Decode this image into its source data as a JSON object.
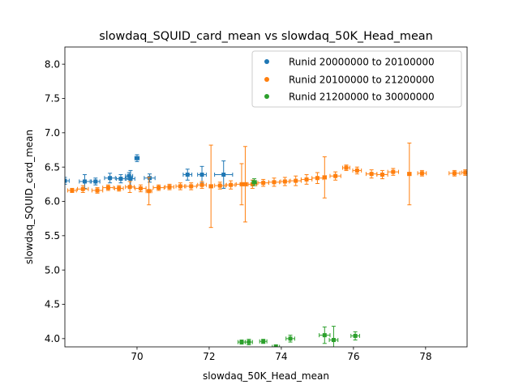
{
  "chart_data": {
    "type": "scatter",
    "title": "slowdaq_SQUID_card_mean vs slowdaq_50K_Head_mean",
    "xlabel": "slowdaq_50K_Head_mean",
    "ylabel": "slowdaq_SQUID_card_mean",
    "xlim": [
      68.0,
      79.15
    ],
    "ylim": [
      3.88,
      8.25
    ],
    "x_ticks": [
      70,
      72,
      74,
      76,
      78
    ],
    "y_ticks": [
      4.0,
      4.5,
      5.0,
      5.5,
      6.0,
      6.5,
      7.0,
      7.5,
      8.0
    ],
    "x_tick_labels": [
      "70",
      "72",
      "74",
      "76",
      "78"
    ],
    "y_tick_labels": [
      "4.0",
      "4.5",
      "5.0",
      "5.5",
      "6.0",
      "6.5",
      "7.0",
      "7.5",
      "8.0"
    ],
    "legend_position": "top-right",
    "grid": false,
    "series": [
      {
        "name": "Runid 20000000 to 20100000",
        "color": "#1f77b4",
        "points": [
          {
            "x": 68.0,
            "y": 6.3,
            "xe": 0.12,
            "ye": 0.05
          },
          {
            "x": 68.55,
            "y": 6.29,
            "xe": 0.15,
            "ye": 0.1
          },
          {
            "x": 68.85,
            "y": 6.29,
            "xe": 0.12,
            "ye": 0.05
          },
          {
            "x": 69.25,
            "y": 6.34,
            "xe": 0.15,
            "ye": 0.07
          },
          {
            "x": 69.55,
            "y": 6.33,
            "xe": 0.12,
            "ye": 0.06
          },
          {
            "x": 69.78,
            "y": 6.37,
            "xe": 0.1,
            "ye": 0.05
          },
          {
            "x": 69.82,
            "y": 6.33,
            "xe": 0.12,
            "ye": 0.12
          },
          {
            "x": 70.0,
            "y": 6.63,
            "xe": 0.06,
            "ye": 0.05
          },
          {
            "x": 70.35,
            "y": 6.34,
            "xe": 0.15,
            "ye": 0.06
          },
          {
            "x": 71.4,
            "y": 6.39,
            "xe": 0.12,
            "ye": 0.08
          },
          {
            "x": 71.8,
            "y": 6.39,
            "xe": 0.12,
            "ye": 0.12
          },
          {
            "x": 72.4,
            "y": 6.39,
            "xe": 0.25,
            "ye": 0.2
          }
        ]
      },
      {
        "name": "Runid 20100000 to 21200000",
        "color": "#ff7f0e",
        "points": [
          {
            "x": 68.2,
            "y": 6.16,
            "xe": 0.12,
            "ye": 0.03
          },
          {
            "x": 68.5,
            "y": 6.18,
            "xe": 0.15,
            "ye": 0.05
          },
          {
            "x": 68.9,
            "y": 6.16,
            "xe": 0.15,
            "ye": 0.04
          },
          {
            "x": 69.2,
            "y": 6.2,
            "xe": 0.15,
            "ye": 0.04
          },
          {
            "x": 69.5,
            "y": 6.19,
            "xe": 0.12,
            "ye": 0.04
          },
          {
            "x": 69.8,
            "y": 6.21,
            "xe": 0.12,
            "ye": 0.08
          },
          {
            "x": 70.1,
            "y": 6.19,
            "xe": 0.15,
            "ye": 0.05
          },
          {
            "x": 70.33,
            "y": 6.15,
            "xe": 0.08,
            "ye": 0.2
          },
          {
            "x": 70.6,
            "y": 6.2,
            "xe": 0.15,
            "ye": 0.04
          },
          {
            "x": 70.9,
            "y": 6.21,
            "xe": 0.12,
            "ye": 0.04
          },
          {
            "x": 71.2,
            "y": 6.22,
            "xe": 0.12,
            "ye": 0.05
          },
          {
            "x": 71.5,
            "y": 6.22,
            "xe": 0.15,
            "ye": 0.05
          },
          {
            "x": 71.8,
            "y": 6.24,
            "xe": 0.12,
            "ye": 0.05
          },
          {
            "x": 72.05,
            "y": 6.22,
            "xe": 0.05,
            "ye": 0.6
          },
          {
            "x": 72.3,
            "y": 6.23,
            "xe": 0.15,
            "ye": 0.05
          },
          {
            "x": 72.6,
            "y": 6.24,
            "xe": 0.12,
            "ye": 0.06
          },
          {
            "x": 72.9,
            "y": 6.25,
            "xe": 0.15,
            "ye": 0.3
          },
          {
            "x": 73.0,
            "y": 6.25,
            "xe": 0.05,
            "ye": 0.55
          },
          {
            "x": 73.2,
            "y": 6.25,
            "xe": 0.12,
            "ye": 0.06
          },
          {
            "x": 73.5,
            "y": 6.27,
            "xe": 0.15,
            "ye": 0.05
          },
          {
            "x": 73.8,
            "y": 6.28,
            "xe": 0.15,
            "ye": 0.06
          },
          {
            "x": 74.1,
            "y": 6.29,
            "xe": 0.12,
            "ye": 0.06
          },
          {
            "x": 74.4,
            "y": 6.3,
            "xe": 0.15,
            "ye": 0.07
          },
          {
            "x": 74.7,
            "y": 6.32,
            "xe": 0.15,
            "ye": 0.07
          },
          {
            "x": 75.0,
            "y": 6.34,
            "xe": 0.15,
            "ye": 0.08
          },
          {
            "x": 75.2,
            "y": 6.35,
            "xe": 0.05,
            "ye": 0.3
          },
          {
            "x": 75.5,
            "y": 6.37,
            "xe": 0.15,
            "ye": 0.06
          },
          {
            "x": 75.8,
            "y": 6.49,
            "xe": 0.1,
            "ye": 0.04
          },
          {
            "x": 76.1,
            "y": 6.45,
            "xe": 0.12,
            "ye": 0.05
          },
          {
            "x": 76.5,
            "y": 6.4,
            "xe": 0.15,
            "ye": 0.06
          },
          {
            "x": 76.8,
            "y": 6.39,
            "xe": 0.15,
            "ye": 0.06
          },
          {
            "x": 77.1,
            "y": 6.43,
            "xe": 0.15,
            "ye": 0.05
          },
          {
            "x": 77.55,
            "y": 6.4,
            "xe": 0.05,
            "ye": 0.45
          },
          {
            "x": 77.9,
            "y": 6.41,
            "xe": 0.12,
            "ye": 0.04
          },
          {
            "x": 78.8,
            "y": 6.41,
            "xe": 0.15,
            "ye": 0.04
          },
          {
            "x": 79.1,
            "y": 6.42,
            "xe": 0.1,
            "ye": 0.04
          }
        ]
      },
      {
        "name": "Runid 21200000 to 30000000",
        "color": "#2ca02c",
        "points": [
          {
            "x": 72.9,
            "y": 3.95,
            "xe": 0.1,
            "ye": 0.03
          },
          {
            "x": 73.1,
            "y": 3.95,
            "xe": 0.1,
            "ye": 0.04
          },
          {
            "x": 73.25,
            "y": 6.28,
            "xe": 0.06,
            "ye": 0.05
          },
          {
            "x": 73.5,
            "y": 3.96,
            "xe": 0.1,
            "ye": 0.03
          },
          {
            "x": 73.85,
            "y": 3.88,
            "xe": 0.1,
            "ye": 0.03
          },
          {
            "x": 74.25,
            "y": 4.0,
            "xe": 0.12,
            "ye": 0.05
          },
          {
            "x": 75.2,
            "y": 4.05,
            "xe": 0.15,
            "ye": 0.12
          },
          {
            "x": 75.45,
            "y": 3.98,
            "xe": 0.12,
            "ye": 0.2
          },
          {
            "x": 76.05,
            "y": 4.04,
            "xe": 0.12,
            "ye": 0.06
          }
        ]
      }
    ]
  }
}
